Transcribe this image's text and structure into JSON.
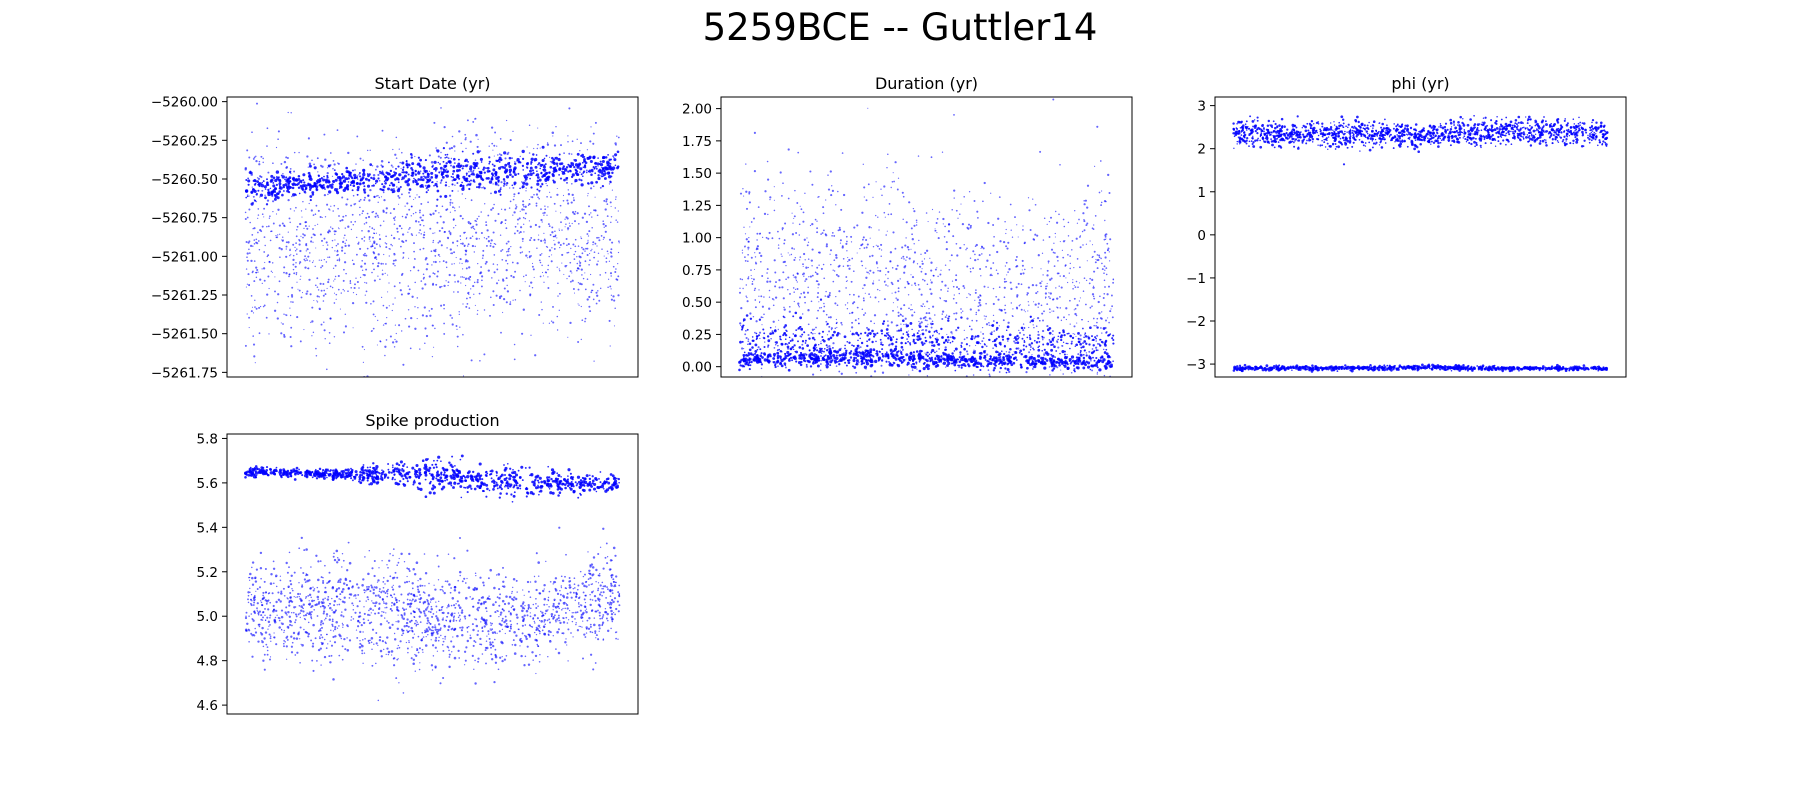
{
  "figure_title": "5259BCE -- Guttler14",
  "colors": {
    "marker": "#0000ff",
    "axis": "#000000",
    "background": "#ffffff"
  },
  "chart_data": [
    {
      "type": "scatter",
      "title": "Start Date (yr)",
      "xlabel": "",
      "ylabel": "",
      "ylim": [
        -5261.78,
        -5259.97
      ],
      "yticks": [
        -5260.0,
        -5260.25,
        -5260.5,
        -5260.75,
        -5261.0,
        -5261.25,
        -5261.5,
        -5261.75
      ],
      "ytick_labels": [
        "−5260.00",
        "−5260.25",
        "−5260.50",
        "−5260.75",
        "−5261.00",
        "−5261.25",
        "−5261.50",
        "−5261.75"
      ],
      "x_range": [
        0,
        1
      ],
      "xticks_visible": false,
      "series": [
        {
          "name": "dense band",
          "kind": "band",
          "x": [
            0,
            0.25,
            0.5,
            0.75,
            1
          ],
          "center": [
            -5260.56,
            -5260.52,
            -5260.47,
            -5260.45,
            -5260.42
          ],
          "spread": [
            0.05,
            0.04,
            0.06,
            0.06,
            0.04
          ],
          "count": 900,
          "size": 1.3
        },
        {
          "name": "diffuse cloud",
          "kind": "cloud",
          "x": [
            0,
            0.25,
            0.5,
            0.75,
            1
          ],
          "center": [
            -5260.95,
            -5261.0,
            -5260.95,
            -5260.85,
            -5260.95
          ],
          "spread": [
            0.32,
            0.3,
            0.33,
            0.3,
            0.3
          ],
          "count": 1600,
          "size": 0.9
        },
        {
          "name": "upper excursion",
          "kind": "cloud",
          "x": [
            0.5,
            0.6,
            0.7
          ],
          "center": [
            -5260.4,
            -5260.2,
            -5260.3
          ],
          "spread": [
            0.05,
            0.08,
            0.06
          ],
          "count": 120,
          "size": 1.0
        }
      ]
    },
    {
      "type": "scatter",
      "title": "Duration (yr)",
      "xlabel": "",
      "ylabel": "",
      "ylim": [
        -0.08,
        2.09
      ],
      "yticks": [
        0.0,
        0.25,
        0.5,
        0.75,
        1.0,
        1.25,
        1.5,
        1.75,
        2.0
      ],
      "ytick_labels": [
        "0.00",
        "0.25",
        "0.50",
        "0.75",
        "1.00",
        "1.25",
        "1.50",
        "1.75",
        "2.00"
      ],
      "x_range": [
        0,
        1
      ],
      "xticks_visible": false,
      "series": [
        {
          "name": "dense band",
          "kind": "band",
          "x": [
            0,
            0.25,
            0.5,
            0.75,
            1
          ],
          "center": [
            0.05,
            0.08,
            0.05,
            0.04,
            0.04
          ],
          "spread": [
            0.03,
            0.04,
            0.03,
            0.03,
            0.03
          ],
          "count": 800,
          "size": 1.3
        },
        {
          "name": "secondary band",
          "kind": "band",
          "x": [
            0,
            0.25,
            0.5,
            0.75,
            1
          ],
          "center": [
            0.25,
            0.2,
            0.2,
            0.18,
            0.2
          ],
          "spread": [
            0.07,
            0.07,
            0.07,
            0.07,
            0.07
          ],
          "count": 500,
          "size": 1.1
        },
        {
          "name": "diffuse cloud",
          "kind": "cloud",
          "x": [
            0,
            0.25,
            0.5,
            0.75,
            1
          ],
          "center": [
            0.7,
            0.65,
            0.6,
            0.55,
            0.6
          ],
          "spread": [
            0.45,
            0.42,
            0.45,
            0.4,
            0.38
          ],
          "count": 1500,
          "size": 0.9
        }
      ]
    },
    {
      "type": "scatter",
      "title": "phi (yr)",
      "xlabel": "",
      "ylabel": "",
      "ylim": [
        -3.3,
        3.2
      ],
      "yticks": [
        3,
        2,
        1,
        0,
        -1,
        -2,
        -3
      ],
      "ytick_labels": [
        "3",
        "2",
        "1",
        "0",
        "−1",
        "−2",
        "−3"
      ],
      "x_range": [
        0,
        1
      ],
      "xticks_visible": false,
      "series": [
        {
          "name": "upper band",
          "kind": "band",
          "x": [
            0,
            0.25,
            0.5,
            0.75,
            1
          ],
          "center": [
            2.35,
            2.35,
            2.3,
            2.4,
            2.35
          ],
          "spread": [
            0.15,
            0.15,
            0.13,
            0.15,
            0.14
          ],
          "count": 1500,
          "size": 1.1
        },
        {
          "name": "lower band",
          "kind": "band",
          "x": [
            0,
            0.25,
            0.5,
            0.75,
            1
          ],
          "center": [
            -3.1,
            -3.1,
            -3.08,
            -3.1,
            -3.1
          ],
          "spread": [
            0.025,
            0.025,
            0.025,
            0.025,
            0.025
          ],
          "count": 800,
          "size": 1.2
        }
      ]
    },
    {
      "type": "scatter",
      "title": "Spike production",
      "xlabel": "",
      "ylabel": "",
      "ylim": [
        4.56,
        5.82
      ],
      "yticks": [
        5.8,
        5.6,
        5.4,
        5.2,
        5.0,
        4.8,
        4.6
      ],
      "ytick_labels": [
        "5.8",
        "5.6",
        "5.4",
        "5.2",
        "5.0",
        "4.8",
        "4.6"
      ],
      "x_range": [
        0,
        1
      ],
      "xticks_visible": false,
      "series": [
        {
          "name": "upper band",
          "kind": "band",
          "x": [
            0,
            0.25,
            0.5,
            0.75,
            1
          ],
          "center": [
            5.65,
            5.64,
            5.63,
            5.6,
            5.6
          ],
          "spread": [
            0.01,
            0.012,
            0.035,
            0.03,
            0.015
          ],
          "count": 900,
          "size": 1.3
        },
        {
          "name": "lower cloud",
          "kind": "cloud",
          "x": [
            0,
            0.25,
            0.5,
            0.75,
            1
          ],
          "center": [
            5.02,
            5.05,
            5.0,
            4.98,
            5.08
          ],
          "spread": [
            0.1,
            0.12,
            0.12,
            0.1,
            0.1
          ],
          "count": 1700,
          "size": 1.0
        }
      ]
    }
  ]
}
